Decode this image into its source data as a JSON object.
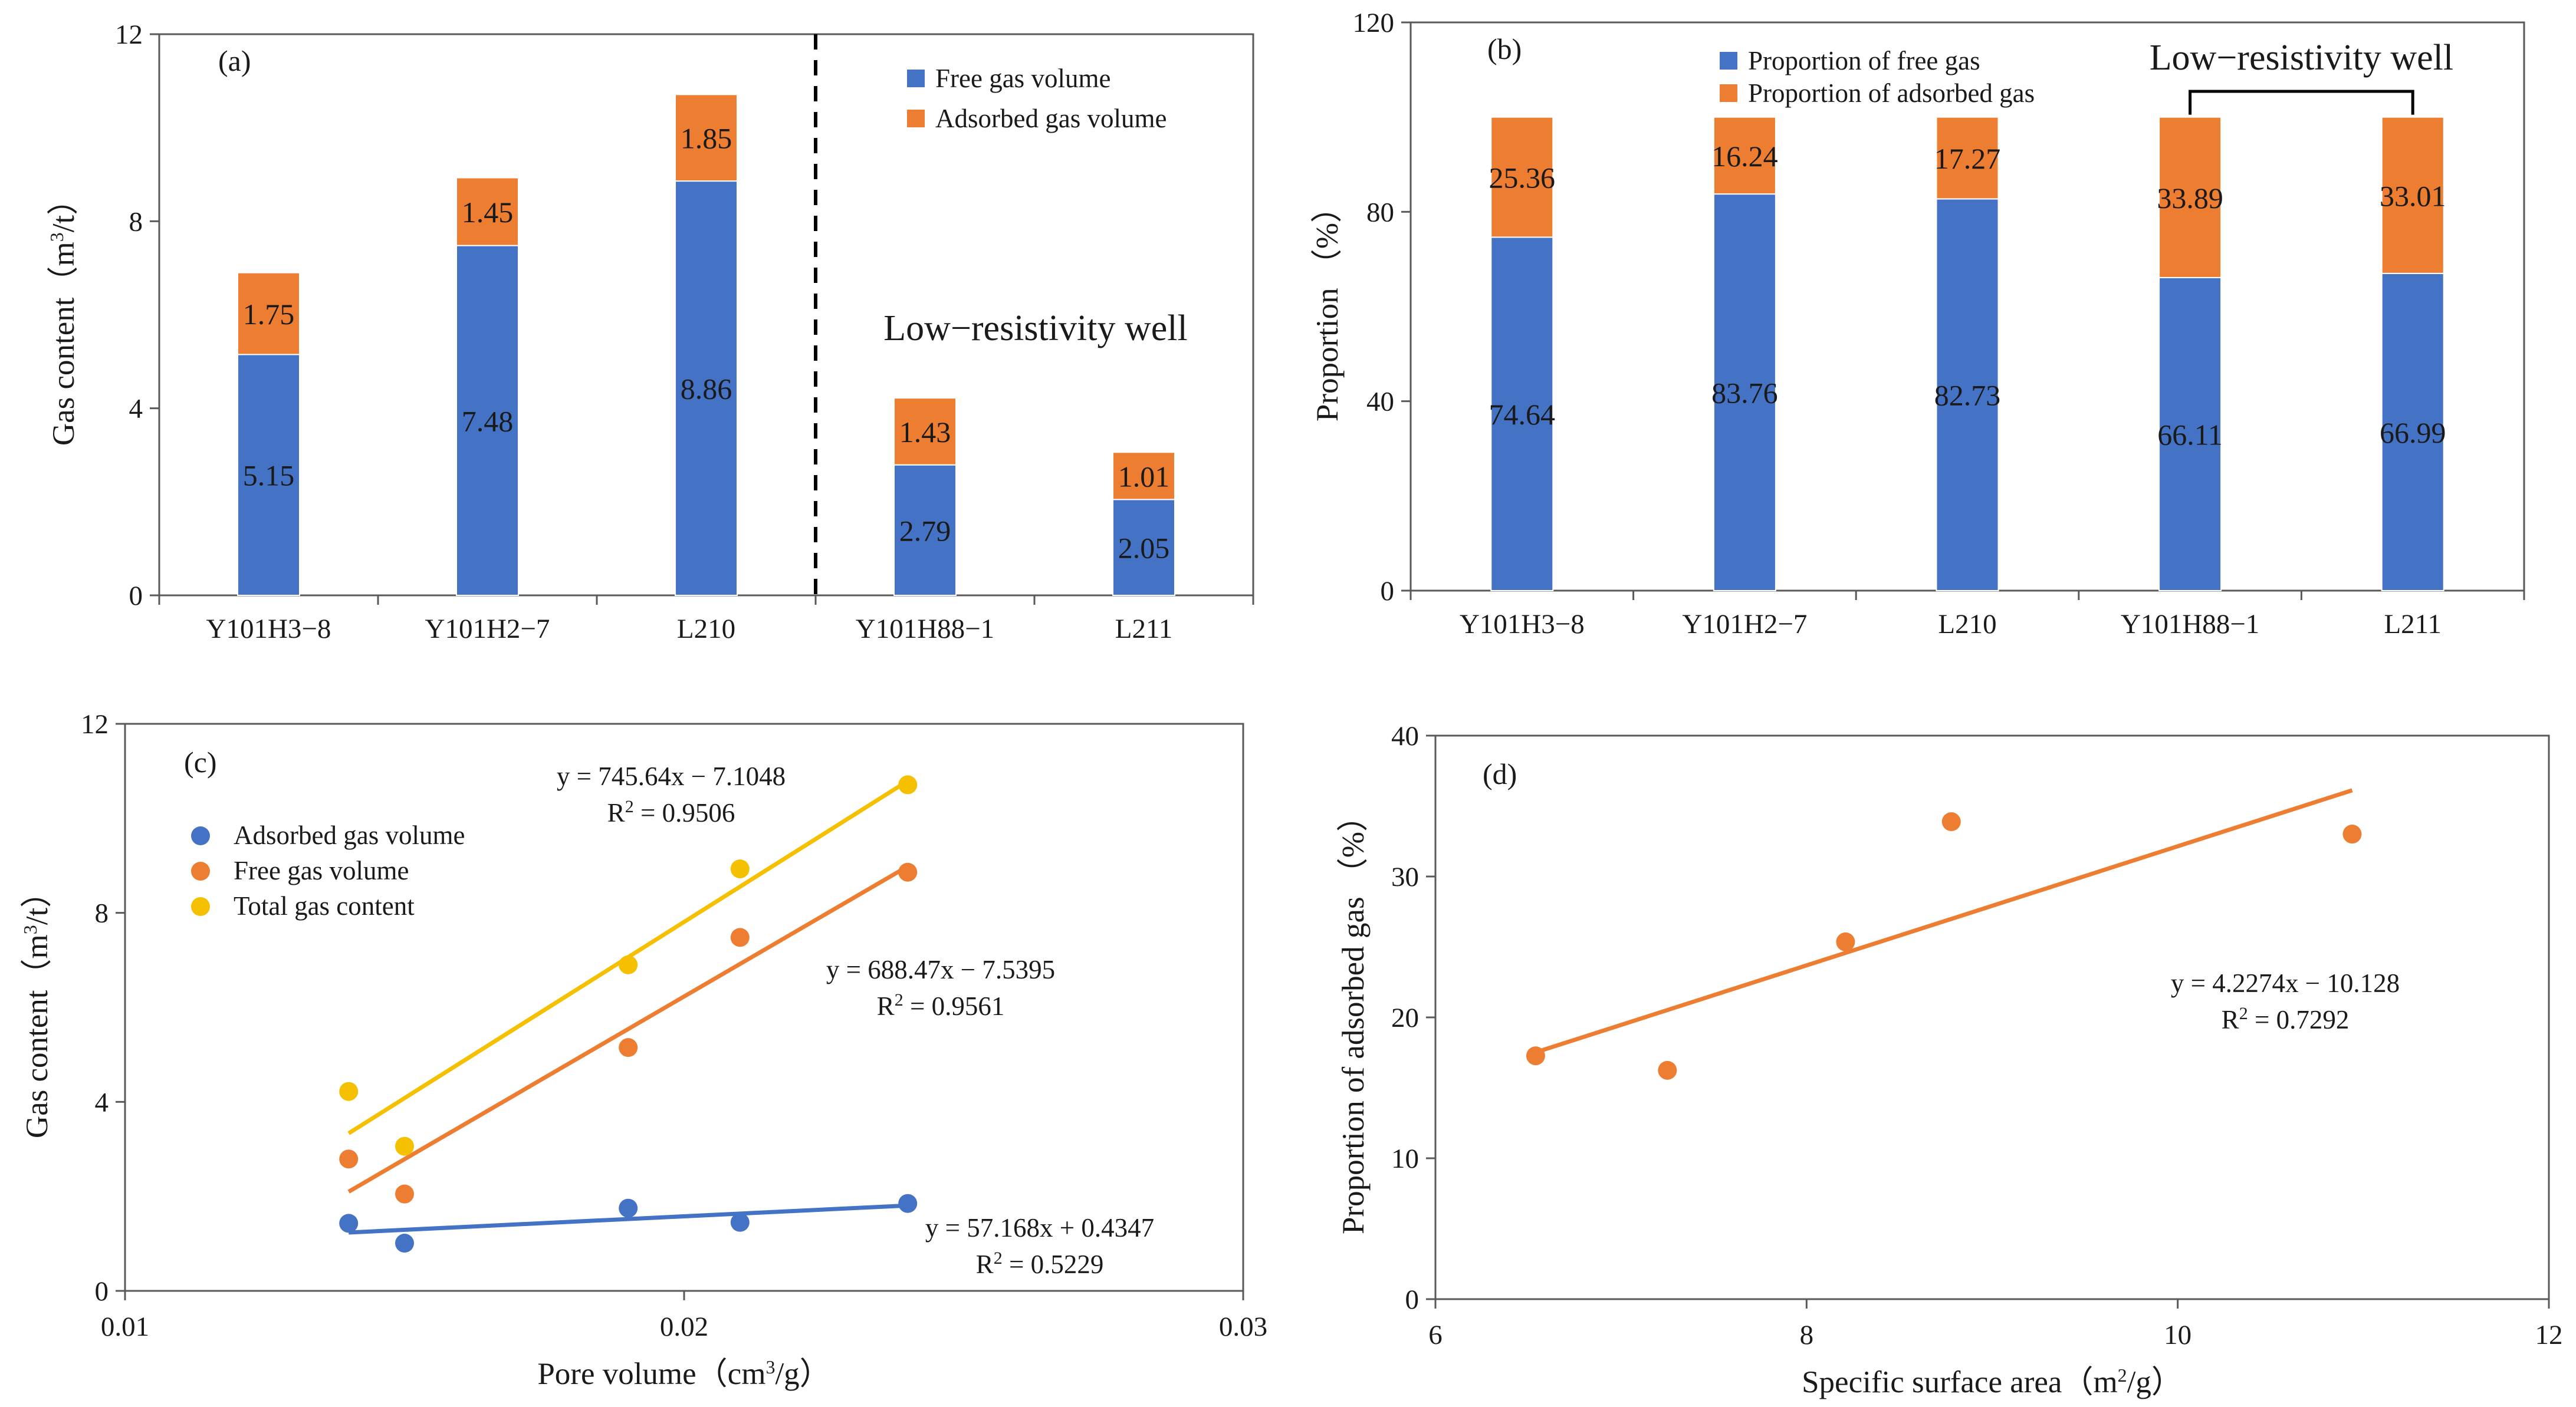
{
  "colors": {
    "free": "#4472C4",
    "adsorbed": "#ED7D31",
    "total": "#F5C000",
    "axis": "#1a1a1a",
    "eq_adsorbed": "#4472C4",
    "eq_free": "#ED7D31",
    "eq_total": "#F5C000"
  },
  "chart_data": [
    {
      "id": "a",
      "type": "bar",
      "stacked": true,
      "panel_label": "(a)",
      "title": "",
      "xlabel": "",
      "ylabel": "Gas content（m³/t）",
      "ylim": [
        0,
        12
      ],
      "yticks": [
        "0",
        "4",
        "8",
        "12"
      ],
      "categories": [
        "Y101H3−8",
        "Y101H2−7",
        "L210",
        "Y101H88−1",
        "L211"
      ],
      "series": [
        {
          "name": "Free gas volume",
          "color_key": "free",
          "values": [
            5.15,
            7.48,
            8.86,
            2.79,
            2.05
          ],
          "labels": [
            "5.15",
            "7.48",
            "8.86",
            "2.79",
            "2.05"
          ]
        },
        {
          "name": "Adsorbed gas volume",
          "color_key": "adsorbed",
          "values": [
            1.75,
            1.45,
            1.85,
            1.43,
            1.01
          ],
          "labels": [
            "1.75",
            "1.45",
            "1.85",
            "1.43",
            "1.01"
          ]
        }
      ],
      "legend_position": "top-right",
      "divider_after_index": 2,
      "annotation": "Low−resistivity well"
    },
    {
      "id": "b",
      "type": "bar",
      "stacked": true,
      "panel_label": "(b)",
      "title": "",
      "xlabel": "",
      "ylabel": "Proportion （%）",
      "ylim": [
        0,
        120
      ],
      "yticks": [
        "0",
        "40",
        "80",
        "120"
      ],
      "categories": [
        "Y101H3−8",
        "Y101H2−7",
        "L210",
        "Y101H88−1",
        "L211"
      ],
      "series": [
        {
          "name": "Proportion of free gas",
          "color_key": "free",
          "values": [
            74.64,
            83.76,
            82.73,
            66.11,
            66.99
          ],
          "labels": [
            "74.64",
            "83.76",
            "82.73",
            "66.11",
            "66.99"
          ]
        },
        {
          "name": "Proportion of adsorbed gas",
          "color_key": "adsorbed",
          "values": [
            25.36,
            16.24,
            17.27,
            33.89,
            33.01
          ],
          "labels": [
            "25.36",
            "16.24",
            "17.27",
            "33.89",
            "33.01"
          ]
        }
      ],
      "legend_position": "top-left",
      "annotation": "Low−resistivity well",
      "bracket_indices": [
        3,
        4
      ]
    },
    {
      "id": "c",
      "type": "scatter",
      "panel_label": "(c)",
      "title": "",
      "xlabel": "Pore volume（cm³/g）",
      "ylabel": "Gas content（m³/t）",
      "xlim": [
        0.01,
        0.03
      ],
      "ylim": [
        0,
        12
      ],
      "xticks": [
        "0.01",
        "0.02",
        "0.03"
      ],
      "yticks": [
        "0",
        "4",
        "8",
        "12"
      ],
      "legend_position": "upper-left",
      "series": [
        {
          "name": "Adsorbed gas volume",
          "color_key": "free",
          "x": [
            0.014,
            0.015,
            0.019,
            0.021,
            0.024
          ],
          "y": [
            1.43,
            1.01,
            1.75,
            1.45,
            1.85
          ],
          "fit": {
            "slope": 57.168,
            "intercept": 0.4347,
            "x_range": [
              0.014,
              0.024
            ]
          },
          "equation": "y = 57.168x + 0.4347",
          "r2_label": "R",
          "r2_value": " = 0.5229",
          "eq_color_key": "eq_adsorbed"
        },
        {
          "name": "Free gas volume",
          "color_key": "adsorbed",
          "x": [
            0.014,
            0.015,
            0.019,
            0.021,
            0.024
          ],
          "y": [
            2.79,
            2.05,
            5.15,
            7.48,
            8.86
          ],
          "fit": {
            "slope": 688.47,
            "intercept": -7.5395,
            "x_range": [
              0.014,
              0.024
            ]
          },
          "equation": "y = 688.47x − 7.5395",
          "r2_label": "R",
          "r2_value": " = 0.9561",
          "eq_color_key": "eq_free"
        },
        {
          "name": "Total gas content",
          "color_key": "total",
          "x": [
            0.014,
            0.015,
            0.019,
            0.021,
            0.024
          ],
          "y": [
            4.22,
            3.06,
            6.9,
            8.93,
            10.71
          ],
          "fit": {
            "slope": 745.64,
            "intercept": -7.1048,
            "x_range": [
              0.014,
              0.024
            ]
          },
          "equation": "y = 745.64x − 7.1048",
          "r2_label": "R",
          "r2_value": " = 0.9506",
          "eq_color_key": "eq_total"
        }
      ]
    },
    {
      "id": "d",
      "type": "scatter",
      "panel_label": "(d)",
      "title": "",
      "xlabel": "Specific surface area（m²/g）",
      "ylabel": "Proportion of adsorbed gas （%）",
      "xlim": [
        6,
        12
      ],
      "ylim": [
        0,
        40
      ],
      "xticks": [
        "6",
        "8",
        "10",
        "12"
      ],
      "yticks": [
        "0",
        "10",
        "20",
        "30",
        "40"
      ],
      "series": [
        {
          "name": "Proportion of adsorbed gas",
          "color_key": "adsorbed",
          "x": [
            6.54,
            7.25,
            8.21,
            8.78,
            10.94
          ],
          "y": [
            17.27,
            16.24,
            25.36,
            33.89,
            33.01
          ],
          "fit": {
            "slope": 4.2274,
            "intercept": -10.128,
            "x_range": [
              6.54,
              10.94
            ]
          },
          "equation": "y = 4.2274x − 10.128",
          "r2_label": "R",
          "r2_value": " = 0.7292",
          "eq_color_key": "eq_free"
        }
      ]
    }
  ]
}
